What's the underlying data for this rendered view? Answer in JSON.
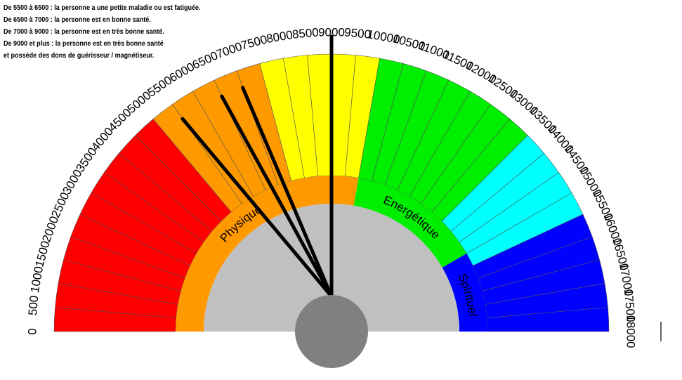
{
  "legend": [
    "De 5500 à 6500 : la personne a une petite maladie ou est fatiguée.",
    "De 6500 à 7000 : la personne est en bonne santé.",
    "De 7000 à 9000 : la personne est en très bonne santé.",
    "De 9000 et plus : la personne est en très bonne santé",
    "et possède des dons de guérisseur / magnétiseur."
  ],
  "scale": {
    "min": 0,
    "max": 18000,
    "step": 500,
    "tick_labels": [
      "0",
      "500",
      "1000",
      "1500",
      "2000",
      "2500",
      "3000",
      "3500",
      "4000",
      "4500",
      "5000",
      "5500",
      "6000",
      "6500",
      "7000",
      "7500",
      "8000",
      "8500",
      "9000",
      "9500",
      "10000",
      "10500",
      "11000",
      "11500",
      "12000",
      "12500",
      "13000",
      "13500",
      "14000",
      "14500",
      "15000",
      "15500",
      "16000",
      "16500",
      "17000",
      "17500",
      "18000"
    ]
  },
  "color_zones": [
    {
      "from": 0,
      "to": 5000,
      "color": "#ff0000"
    },
    {
      "from": 5000,
      "to": 7500,
      "color": "#ff9900"
    },
    {
      "from": 7500,
      "to": 10000,
      "color": "#ffff00"
    },
    {
      "from": 10000,
      "to": 13500,
      "color": "#00ee00"
    },
    {
      "from": 13500,
      "to": 15500,
      "color": "#00ffff"
    },
    {
      "from": 15500,
      "to": 18000,
      "color": "#0000ff"
    }
  ],
  "inner_bands": [
    {
      "label": "Physique",
      "from": 0,
      "to": 10000,
      "color": "#ff9900"
    },
    {
      "label": "Energétique",
      "from": 10000,
      "to": 15000,
      "color": "#00ee00"
    },
    {
      "label": "Spirituel",
      "from": 15000,
      "to": 18000,
      "color": "#0000ff"
    }
  ],
  "needles": [
    5500,
    6500,
    7000,
    9000
  ],
  "colors": {
    "center_disc": "#c0c0c0",
    "hub": "#808080",
    "needle": "#000000",
    "divider": "#555555"
  }
}
